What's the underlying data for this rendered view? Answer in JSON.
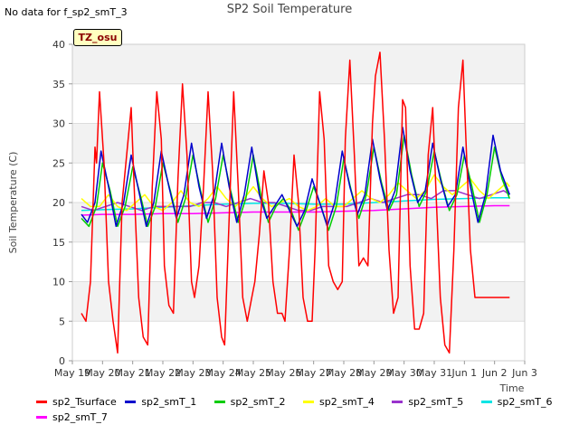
{
  "header": {
    "no_data_text": "No data for f_sp2_smT_3",
    "badge": "TZ_osu"
  },
  "chart_data": {
    "type": "line",
    "title": "SP2 Soil Temperature",
    "xlabel": "Time",
    "ylabel": "Soil Temperature (C)",
    "ylim": [
      0,
      40
    ],
    "xlim": [
      0,
      15
    ],
    "yticks": [
      0,
      5,
      10,
      15,
      20,
      25,
      30,
      35,
      40
    ],
    "xtick_labels": [
      "May 19",
      "May 20",
      "May 21",
      "May 22",
      "May 23",
      "May 24",
      "May 25",
      "May 26",
      "May 27",
      "May 28",
      "May 29",
      "May 30",
      "May 31",
      "Jun 1",
      "Jun 2",
      "Jun 3"
    ],
    "background_bands": true,
    "grid": true,
    "legend_position": "bottom",
    "series": [
      {
        "name": "sp2_Tsurface",
        "color": "#ff0000",
        "x": [
          0.3,
          0.45,
          0.6,
          0.75,
          0.8,
          0.9,
          1.05,
          1.2,
          1.35,
          1.5,
          1.65,
          1.8,
          1.95,
          2.05,
          2.2,
          2.35,
          2.5,
          2.65,
          2.8,
          2.95,
          3.05,
          3.2,
          3.35,
          3.5,
          3.65,
          3.8,
          3.95,
          4.05,
          4.2,
          4.35,
          4.5,
          4.65,
          4.8,
          4.95,
          5.05,
          5.2,
          5.35,
          5.5,
          5.65,
          5.8,
          5.95,
          6.05,
          6.2,
          6.35,
          6.5,
          6.65,
          6.8,
          6.95,
          7.05,
          7.2,
          7.35,
          7.5,
          7.65,
          7.8,
          7.95,
          8.05,
          8.2,
          8.35,
          8.5,
          8.65,
          8.8,
          8.95,
          9.05,
          9.2,
          9.35,
          9.5,
          9.65,
          9.8,
          9.95,
          10.05,
          10.2,
          10.35,
          10.5,
          10.65,
          10.8,
          10.95,
          11.05,
          11.2,
          11.35,
          11.5,
          11.65,
          11.8,
          11.95,
          12.05,
          12.2,
          12.35,
          12.5,
          12.65,
          12.8,
          12.95,
          13.05,
          13.2,
          13.35,
          13.5,
          13.65,
          13.8,
          13.95,
          14.05,
          14.2,
          14.35,
          14.5
        ],
        "y": [
          6,
          5,
          10,
          27,
          25,
          34,
          25,
          10,
          5,
          1,
          20,
          26,
          32,
          22,
          8,
          3,
          2,
          22,
          34,
          28,
          12,
          7,
          6,
          23,
          35,
          26,
          10,
          8,
          12,
          22,
          34,
          24,
          8,
          3,
          2,
          18,
          34,
          22,
          8,
          5,
          8,
          10,
          16,
          24,
          20,
          10,
          6,
          6,
          5,
          14,
          26,
          20,
          8,
          5,
          5,
          14,
          34,
          28,
          12,
          10,
          9,
          10,
          28,
          38,
          26,
          12,
          13,
          12,
          30,
          36,
          39,
          28,
          14,
          6,
          8,
          33,
          32,
          12,
          4,
          4,
          6,
          26,
          32,
          22,
          8,
          2,
          1,
          14,
          32,
          38,
          28,
          14,
          8,
          8,
          8,
          8,
          8,
          8,
          8,
          8,
          8
        ]
      },
      {
        "name": "sp2_smT_1",
        "color": "#0000cc",
        "x": [
          0.3,
          0.5,
          0.75,
          0.95,
          1.2,
          1.45,
          1.7,
          1.95,
          2.2,
          2.45,
          2.7,
          2.95,
          3.2,
          3.45,
          3.7,
          3.95,
          4.2,
          4.45,
          4.7,
          4.95,
          5.2,
          5.45,
          5.7,
          5.95,
          6.2,
          6.45,
          6.7,
          6.95,
          7.2,
          7.45,
          7.7,
          7.95,
          8.2,
          8.45,
          8.7,
          8.95,
          9.2,
          9.45,
          9.7,
          9.95,
          10.2,
          10.45,
          10.7,
          10.95,
          11.2,
          11.45,
          11.7,
          11.95,
          12.2,
          12.45,
          12.7,
          12.95,
          13.2,
          13.45,
          13.7,
          13.95,
          14.2,
          14.5
        ],
        "y": [
          18.5,
          17.5,
          20,
          26.5,
          22,
          17,
          20,
          26,
          21.5,
          17,
          20,
          26.5,
          22,
          18,
          21,
          27.5,
          22,
          18,
          21,
          27.5,
          22,
          17.5,
          21,
          27,
          21,
          18,
          19.5,
          21,
          19,
          17,
          19,
          23,
          20,
          17,
          20,
          26.5,
          22,
          18.5,
          21,
          28,
          23,
          19,
          21.5,
          29.5,
          24,
          20,
          21.5,
          27.5,
          23,
          19.5,
          21,
          27,
          22,
          17.5,
          21,
          28.5,
          24,
          21
        ]
      },
      {
        "name": "sp2_smT_2",
        "color": "#00cc00",
        "x": [
          0.3,
          0.55,
          0.8,
          1.0,
          1.25,
          1.5,
          1.75,
          2.0,
          2.25,
          2.5,
          2.75,
          3.0,
          3.25,
          3.5,
          3.75,
          4.0,
          4.25,
          4.5,
          4.75,
          5.0,
          5.25,
          5.5,
          5.75,
          6.0,
          6.25,
          6.5,
          6.75,
          7.0,
          7.25,
          7.5,
          7.75,
          8.0,
          8.25,
          8.5,
          8.75,
          9.0,
          9.25,
          9.5,
          9.75,
          10.0,
          10.25,
          10.5,
          10.75,
          11.0,
          11.25,
          11.5,
          11.75,
          12.0,
          12.25,
          12.5,
          12.75,
          13.0,
          13.25,
          13.5,
          13.75,
          14.0,
          14.25,
          14.5
        ],
        "y": [
          18,
          17,
          19.5,
          25,
          21.5,
          17,
          19.5,
          24.5,
          21,
          17,
          19.5,
          25,
          21.5,
          17.5,
          20.5,
          26,
          21.5,
          17.5,
          20.5,
          26,
          21.5,
          17.5,
          20.5,
          26,
          21,
          17.5,
          19.5,
          20.5,
          19,
          16.5,
          19,
          22,
          19.5,
          16.5,
          19.5,
          25.5,
          21.5,
          18,
          21,
          27,
          22.5,
          19,
          21,
          28.5,
          23.5,
          19.5,
          21.5,
          26.5,
          22.5,
          19,
          21,
          26,
          22,
          17.5,
          21,
          27,
          23,
          20.5
        ]
      },
      {
        "name": "sp2_smT_4",
        "color": "#ffff00",
        "x": [
          0.3,
          0.6,
          0.9,
          1.2,
          1.5,
          1.8,
          2.1,
          2.4,
          2.7,
          3.0,
          3.3,
          3.6,
          3.9,
          4.2,
          4.5,
          4.8,
          5.1,
          5.4,
          5.7,
          6.0,
          6.3,
          6.6,
          6.9,
          7.2,
          7.5,
          7.8,
          8.1,
          8.4,
          8.7,
          9.0,
          9.3,
          9.6,
          9.9,
          10.2,
          10.5,
          10.8,
          11.1,
          11.4,
          11.7,
          12.0,
          12.3,
          12.6,
          12.9,
          13.2,
          13.5,
          13.8,
          14.1,
          14.4,
          14.5
        ],
        "y": [
          20.5,
          19.5,
          19.5,
          21,
          19.5,
          19,
          20,
          21,
          19.5,
          19,
          20,
          21.5,
          20,
          19.5,
          20.5,
          22,
          20.5,
          19.5,
          20.5,
          22,
          20.5,
          19.5,
          20,
          20.5,
          19.5,
          19,
          19.5,
          20.5,
          19.5,
          19.5,
          20.5,
          21.5,
          20.5,
          20,
          21,
          22.5,
          21.5,
          20.5,
          21.5,
          23.5,
          22,
          21,
          22,
          23,
          21.5,
          20.5,
          21.5,
          22.5,
          22
        ]
      },
      {
        "name": "sp2_smT_5",
        "color": "#9933cc",
        "x": [
          0.3,
          0.7,
          1.1,
          1.5,
          1.9,
          2.3,
          2.7,
          3.1,
          3.5,
          3.9,
          4.3,
          4.7,
          5.1,
          5.5,
          5.9,
          6.3,
          6.7,
          7.1,
          7.5,
          7.9,
          8.3,
          8.7,
          9.1,
          9.5,
          9.9,
          10.3,
          10.7,
          11.1,
          11.5,
          11.9,
          12.3,
          12.7,
          13.1,
          13.5,
          13.9,
          14.3,
          14.5
        ],
        "y": [
          19.5,
          19,
          19.5,
          20,
          19.5,
          19,
          19.5,
          19.5,
          19.5,
          19.5,
          20,
          20,
          19.5,
          20,
          20.5,
          20,
          20,
          19.5,
          19,
          19,
          19.5,
          19.5,
          19.5,
          20,
          20.5,
          20,
          20.5,
          21,
          21,
          20.5,
          21.5,
          21.5,
          21,
          20.5,
          21,
          21.5,
          21
        ]
      },
      {
        "name": "sp2_smT_6",
        "color": "#00e5e5",
        "x": [
          0.3,
          1.0,
          2.0,
          3.0,
          4.0,
          5.0,
          6.0,
          7.0,
          8.0,
          9.0,
          10.0,
          11.0,
          12.0,
          13.0,
          14.0,
          14.5
        ],
        "y": [
          19,
          19.1,
          19.2,
          19.4,
          19.6,
          19.8,
          19.9,
          19.9,
          19.8,
          19.8,
          20,
          20.2,
          20.4,
          20.5,
          20.6,
          20.6
        ]
      },
      {
        "name": "sp2_smT_7",
        "color": "#ff00ff",
        "x": [
          0.3,
          1.0,
          2.0,
          3.0,
          4.0,
          5.0,
          6.0,
          7.0,
          8.0,
          9.0,
          10.0,
          11.0,
          12.0,
          13.0,
          14.0,
          14.5
        ],
        "y": [
          18.4,
          18.5,
          18.5,
          18.6,
          18.6,
          18.7,
          18.8,
          18.8,
          18.8,
          18.9,
          19,
          19.2,
          19.4,
          19.5,
          19.6,
          19.6
        ]
      }
    ]
  }
}
